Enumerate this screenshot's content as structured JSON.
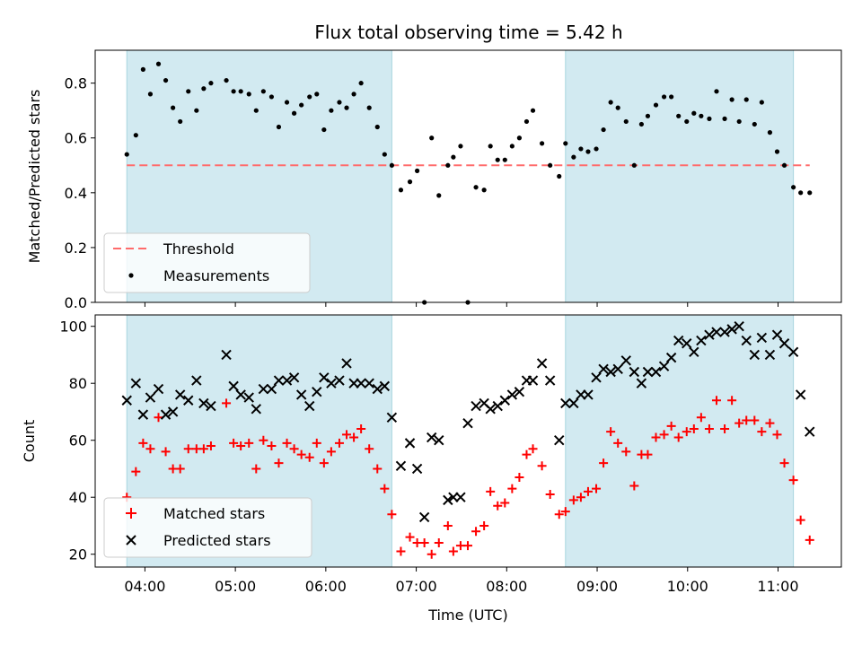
{
  "chart_data": {
    "title": "Flux total observing time = 5.42 h",
    "colors": {
      "shade": "#add8e6",
      "threshold": "#ff6b6b",
      "measurements": "#000000",
      "matched": "#ff0000",
      "predicted": "#000000"
    },
    "x_axis": {
      "label": "Time (UTC)",
      "unit": "hours",
      "range": [
        3.45,
        11.7
      ],
      "tick_values": [
        4,
        5,
        6,
        7,
        8,
        9,
        10,
        11
      ],
      "tick_labels": [
        "04:00",
        "05:00",
        "06:00",
        "07:00",
        "08:00",
        "09:00",
        "10:00",
        "11:00"
      ]
    },
    "shaded_intervals": [
      [
        3.8,
        6.73
      ],
      [
        8.65,
        11.17
      ]
    ],
    "panels": [
      {
        "type": "scatter",
        "ylabel": "Matched/Predicted stars",
        "ylim": [
          0,
          0.92
        ],
        "y_ticks": [
          0.0,
          0.2,
          0.4,
          0.6,
          0.8
        ],
        "y_tick_labels": [
          "0.0",
          "0.2",
          "0.4",
          "0.6",
          "0.8"
        ],
        "threshold": {
          "name": "Threshold",
          "value": 0.5,
          "x_range": [
            3.8,
            11.35
          ],
          "style": "dashed"
        },
        "series": [
          {
            "name": "Measurements",
            "marker": "dot",
            "x": [
              3.8,
              3.9,
              3.98,
              4.06,
              4.15,
              4.23,
              4.31,
              4.39,
              4.48,
              4.57,
              4.65,
              4.73,
              4.9,
              4.98,
              5.06,
              5.15,
              5.23,
              5.31,
              5.4,
              5.48,
              5.57,
              5.65,
              5.73,
              5.82,
              5.9,
              5.98,
              6.06,
              6.15,
              6.23,
              6.31,
              6.39,
              6.48,
              6.57,
              6.65,
              6.73,
              6.83,
              6.93,
              7.01,
              7.09,
              7.17,
              7.25,
              7.35,
              7.41,
              7.49,
              7.57,
              7.66,
              7.75,
              7.82,
              7.9,
              7.98,
              8.06,
              8.14,
              8.22,
              8.29,
              8.39,
              8.48,
              8.58,
              8.65,
              8.74,
              8.82,
              8.9,
              8.99,
              9.07,
              9.15,
              9.23,
              9.32,
              9.41,
              9.49,
              9.56,
              9.65,
              9.74,
              9.82,
              9.9,
              9.99,
              10.07,
              10.15,
              10.24,
              10.32,
              10.41,
              10.49,
              10.57,
              10.65,
              10.74,
              10.82,
              10.91,
              10.99,
              11.07,
              11.17,
              11.25,
              11.35
            ],
            "y": [
              0.54,
              0.61,
              0.85,
              0.76,
              0.87,
              0.81,
              0.71,
              0.66,
              0.77,
              0.7,
              0.78,
              0.8,
              0.81,
              0.77,
              0.77,
              0.76,
              0.7,
              0.77,
              0.75,
              0.64,
              0.73,
              0.69,
              0.72,
              0.75,
              0.76,
              0.63,
              0.7,
              0.73,
              0.71,
              0.76,
              0.8,
              0.71,
              0.64,
              0.54,
              0.5,
              0.41,
              0.44,
              0.48,
              0.0,
              0.6,
              0.39,
              0.5,
              0.53,
              0.57,
              0.0,
              0.42,
              0.41,
              0.57,
              0.52,
              0.52,
              0.57,
              0.6,
              0.66,
              0.7,
              0.58,
              0.5,
              0.46,
              0.58,
              0.53,
              0.56,
              0.55,
              0.56,
              0.63,
              0.73,
              0.71,
              0.66,
              0.5,
              0.65,
              0.68,
              0.72,
              0.75,
              0.75,
              0.68,
              0.66,
              0.69,
              0.68,
              0.67,
              0.77,
              0.67,
              0.74,
              0.66,
              0.74,
              0.65,
              0.73,
              0.62,
              0.55,
              0.5,
              0.42,
              0.4,
              0.4
            ]
          }
        ],
        "legend": {
          "placement": "lower-left",
          "entries": [
            "Threshold",
            "Measurements"
          ]
        }
      },
      {
        "type": "scatter",
        "ylabel": "Count",
        "ylim": [
          15.5,
          104
        ],
        "y_ticks": [
          20,
          40,
          60,
          80,
          100
        ],
        "y_tick_labels": [
          "20",
          "40",
          "60",
          "80",
          "100"
        ],
        "series": [
          {
            "name": "Matched stars",
            "marker": "plus",
            "x": [
              3.8,
              3.9,
              3.98,
              4.06,
              4.15,
              4.23,
              4.31,
              4.39,
              4.48,
              4.57,
              4.65,
              4.73,
              4.9,
              4.98,
              5.06,
              5.15,
              5.23,
              5.31,
              5.4,
              5.48,
              5.57,
              5.65,
              5.73,
              5.82,
              5.9,
              5.98,
              6.06,
              6.15,
              6.23,
              6.31,
              6.39,
              6.48,
              6.57,
              6.65,
              6.73,
              6.83,
              6.93,
              7.01,
              7.09,
              7.17,
              7.25,
              7.35,
              7.41,
              7.49,
              7.57,
              7.66,
              7.75,
              7.82,
              7.9,
              7.98,
              8.06,
              8.14,
              8.22,
              8.29,
              8.39,
              8.48,
              8.58,
              8.65,
              8.74,
              8.82,
              8.9,
              8.99,
              9.07,
              9.15,
              9.23,
              9.32,
              9.41,
              9.49,
              9.56,
              9.65,
              9.74,
              9.82,
              9.9,
              9.99,
              10.07,
              10.15,
              10.24,
              10.32,
              10.41,
              10.49,
              10.57,
              10.65,
              10.74,
              10.82,
              10.91,
              10.99,
              11.07,
              11.17,
              11.25,
              11.35
            ],
            "y": [
              40,
              49,
              59,
              57,
              68,
              56,
              50,
              50,
              57,
              57,
              57,
              58,
              73,
              59,
              58,
              59,
              50,
              60,
              58,
              52,
              59,
              57,
              55,
              54,
              59,
              52,
              56,
              59,
              62,
              61,
              64,
              57,
              50,
              43,
              34,
              21,
              26,
              24,
              24,
              20,
              24,
              30,
              21,
              23,
              23,
              28,
              30,
              42,
              37,
              38,
              43,
              47,
              55,
              57,
              51,
              41,
              34,
              35,
              39,
              40,
              42,
              43,
              52,
              63,
              59,
              56,
              44,
              55,
              55,
              61,
              62,
              65,
              61,
              63,
              64,
              68,
              64,
              74,
              64,
              74,
              66,
              67,
              67,
              63,
              66,
              62,
              52,
              46,
              32,
              25
            ]
          },
          {
            "name": "Predicted stars",
            "marker": "x",
            "x": [
              3.8,
              3.9,
              3.98,
              4.06,
              4.15,
              4.23,
              4.31,
              4.39,
              4.48,
              4.57,
              4.65,
              4.73,
              4.9,
              4.98,
              5.06,
              5.15,
              5.23,
              5.31,
              5.4,
              5.48,
              5.57,
              5.65,
              5.73,
              5.82,
              5.9,
              5.98,
              6.06,
              6.15,
              6.23,
              6.31,
              6.39,
              6.48,
              6.57,
              6.65,
              6.73,
              6.83,
              6.93,
              7.01,
              7.09,
              7.17,
              7.25,
              7.35,
              7.41,
              7.49,
              7.57,
              7.66,
              7.75,
              7.82,
              7.9,
              7.98,
              8.06,
              8.14,
              8.22,
              8.29,
              8.39,
              8.48,
              8.58,
              8.65,
              8.74,
              8.82,
              8.9,
              8.99,
              9.07,
              9.15,
              9.23,
              9.32,
              9.41,
              9.49,
              9.56,
              9.65,
              9.74,
              9.82,
              9.9,
              9.99,
              10.07,
              10.15,
              10.24,
              10.32,
              10.41,
              10.49,
              10.57,
              10.65,
              10.74,
              10.82,
              10.91,
              10.99,
              11.07,
              11.17,
              11.25,
              11.35
            ],
            "y": [
              74,
              80,
              69,
              75,
              78,
              69,
              70,
              76,
              74,
              81,
              73,
              72,
              90,
              79,
              76,
              75,
              71,
              78,
              78,
              81,
              81,
              82,
              76,
              72,
              77,
              82,
              80,
              81,
              87,
              80,
              80,
              80,
              78,
              79,
              68,
              51,
              59,
              50,
              33,
              61,
              60,
              39,
              40,
              40,
              66,
              72,
              73,
              71,
              72,
              74,
              76,
              77,
              81,
              81,
              87,
              81,
              60,
              73,
              73,
              76,
              76,
              82,
              85,
              84,
              85,
              88,
              84,
              80,
              84,
              84,
              86,
              89,
              95,
              94,
              91,
              95,
              97,
              98,
              98,
              99,
              100,
              95,
              90,
              96,
              90,
              97,
              94,
              91,
              76,
              63
            ]
          }
        ],
        "legend": {
          "placement": "lower-left",
          "entries": [
            "Matched stars",
            "Predicted stars"
          ]
        }
      }
    ]
  }
}
